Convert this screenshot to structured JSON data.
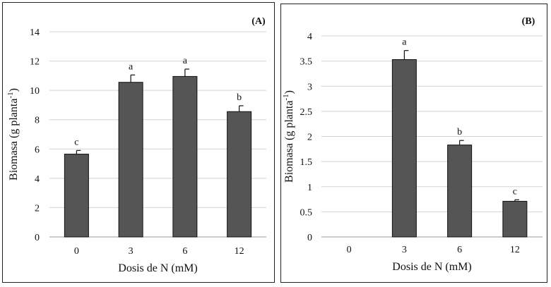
{
  "chart_data": [
    {
      "type": "bar",
      "panel_label": "(A)",
      "categories": [
        "0",
        "3",
        "6",
        "12"
      ],
      "values": [
        5.65,
        10.55,
        10.95,
        8.55
      ],
      "errors": [
        0.25,
        0.5,
        0.5,
        0.4
      ],
      "significance": [
        "c",
        "a",
        "a",
        "b"
      ],
      "xlabel": "Dosis de N (mM)",
      "ylabel_main": "Biomasa (g planta",
      "ylabel_sup": "-1",
      "ylabel_close": ")",
      "ylim": [
        0,
        14
      ],
      "yticks": [
        0,
        2,
        4,
        6,
        8,
        10,
        12,
        14
      ],
      "ytick_labels": [
        "0",
        "2",
        "4",
        "6",
        "8",
        "10",
        "12",
        "14"
      ],
      "grid": true,
      "bar_color": "#555555"
    },
    {
      "type": "bar",
      "panel_label": "(B)",
      "categories": [
        "0",
        "3",
        "6",
        "12"
      ],
      "values": [
        0,
        3.53,
        1.83,
        0.71
      ],
      "errors": [
        0,
        0.18,
        0.09,
        0.03
      ],
      "significance": [
        "",
        "a",
        "b",
        "c"
      ],
      "xlabel": "Dosis de N (mM)",
      "ylabel_main": "Biomasa (g planta",
      "ylabel_sup": "-1",
      "ylabel_close": ")",
      "ylim": [
        0,
        4
      ],
      "yticks": [
        0,
        0.5,
        1,
        1.5,
        2,
        2.5,
        3,
        3.5,
        4
      ],
      "ytick_labels": [
        "0",
        "0.5",
        "1",
        "1.5",
        "2",
        "2.5",
        "3",
        "3.5",
        "4"
      ],
      "grid": true,
      "bar_color": "#555555"
    }
  ]
}
